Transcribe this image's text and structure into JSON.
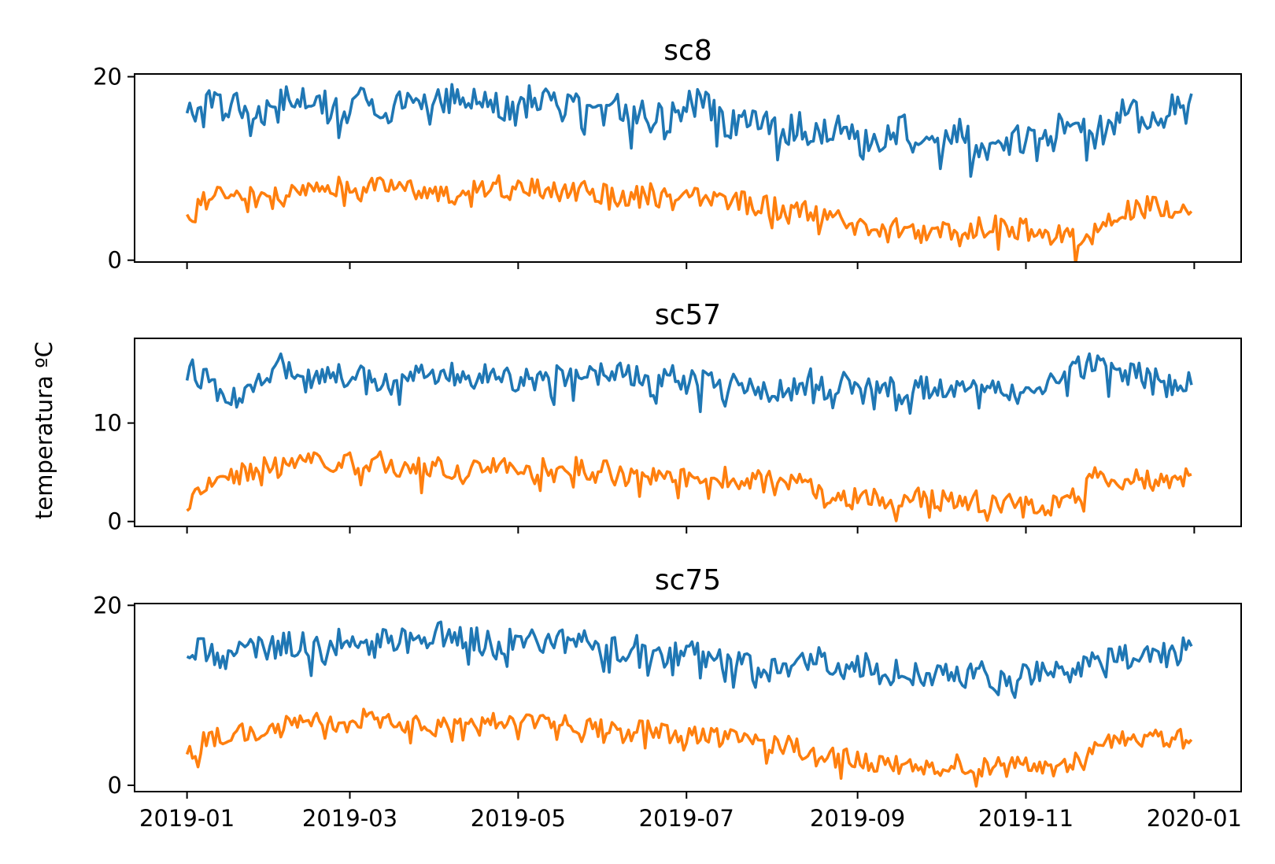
{
  "figure": {
    "ylabel": "temperatura ºC"
  },
  "chart_data": [
    {
      "type": "line",
      "title": "sc8",
      "xlabel": "",
      "ylabel": "",
      "x_range": [
        "2019-01-01",
        "2019-12-31"
      ],
      "xlim": [
        "2018-12-13",
        "2020-01-18"
      ],
      "ylim": [
        -0.2,
        20.3
      ],
      "yticks": [
        0,
        20
      ],
      "ytick_labels": [
        "0",
        "20"
      ],
      "xticks": [
        "2019-01-01",
        "2019-03-01",
        "2019-05-01",
        "2019-07-01",
        "2019-09-01",
        "2019-11-01",
        "2020-01-01"
      ],
      "xtick_labels": [
        "2019-01",
        "2019-03",
        "2019-05",
        "2019-07",
        "2019-09",
        "2019-11",
        "2020-01"
      ],
      "show_xtick_labels": false,
      "grid": false,
      "series": [
        {
          "color": "#1f77b4",
          "sample_every_days": 7,
          "values": [
            15.5,
            17.0,
            16.5,
            17.2,
            15.8,
            17.5,
            18.0,
            17.0,
            16.5,
            17.8,
            15.5,
            16.8,
            17.5,
            17.2,
            17.8,
            18.2,
            17.0,
            16.5,
            17.8,
            17.5,
            17.0,
            16.8,
            17.5,
            16.0,
            15.8,
            15.5,
            17.2,
            16.8,
            14.5,
            15.8,
            15.0,
            14.2,
            14.8,
            13.8,
            15.5,
            12.5,
            13.5,
            14.5,
            13.2,
            12.8,
            13.8,
            12.0,
            12.5,
            13.5,
            12.8,
            14.5,
            14.0,
            14.8,
            15.5,
            16.8,
            15.2,
            16.5,
            17.0,
            15.8,
            16.5,
            17.2,
            16.0,
            16.2,
            17.0,
            16.5,
            16.0,
            16.8,
            16.5
          ],
          "noise": 1.6
        },
        {
          "color": "#ff7f0e",
          "sample_every_days": 7,
          "values": [
            4.5,
            6.5,
            7.5,
            7.0,
            6.5,
            7.0,
            8.0,
            7.8,
            8.0,
            7.5,
            8.2,
            7.5,
            7.8,
            7.0,
            7.2,
            8.0,
            8.2,
            7.5,
            7.8,
            7.5,
            7.8,
            7.5,
            7.2,
            6.8,
            7.2,
            6.5,
            6.8,
            6.5,
            6.5,
            6.2,
            6.0,
            5.8,
            5.5,
            5.0,
            4.5,
            3.5,
            3.2,
            3.5,
            3.0,
            3.2,
            2.5,
            3.5,
            3.8,
            3.5,
            3.0,
            2.8,
            2.5,
            3.0,
            5.0,
            5.5,
            6.0,
            5.8,
            5.5,
            5.5,
            6.0,
            6.5,
            6.8,
            7.2,
            8.0,
            8.2,
            7.5,
            7.8,
            8.0
          ],
          "noise": 1.2
        }
      ]
    },
    {
      "type": "line",
      "title": "sc57",
      "xlabel": "",
      "ylabel": "",
      "x_range": [
        "2019-01-01",
        "2019-12-31"
      ],
      "xlim": [
        "2018-12-13",
        "2020-01-18"
      ],
      "ylim": [
        -0.5,
        18.6
      ],
      "yticks": [
        0,
        10
      ],
      "ytick_labels": [
        "0",
        "10"
      ],
      "xticks": [
        "2019-01-01",
        "2019-03-01",
        "2019-05-01",
        "2019-07-01",
        "2019-09-01",
        "2019-11-01",
        "2020-01-01"
      ],
      "xtick_labels": [
        "2019-01",
        "2019-03",
        "2019-05",
        "2019-07",
        "2019-09",
        "2019-11",
        "2020-01"
      ],
      "show_xtick_labels": false,
      "grid": false,
      "series": [
        {
          "color": "#1f77b4",
          "sample_every_days": 7,
          "values": [
            15.5,
            14.5,
            12.0,
            13.5,
            14.5,
            16.0,
            15.0,
            14.5,
            14.8,
            15.0,
            13.5,
            14.5,
            15.5,
            14.8,
            15.2,
            14.5,
            15.0,
            14.2,
            15.0,
            14.8,
            14.5,
            15.2,
            14.8,
            15.0,
            14.0,
            14.8,
            14.5,
            14.0,
            13.5,
            14.2,
            13.5,
            13.0,
            14.8,
            13.5,
            14.5,
            13.2,
            13.8,
            13.0,
            13.5,
            14.0,
            13.2,
            13.5,
            14.2,
            13.0,
            14.0,
            14.5,
            15.5,
            16.0,
            15.5,
            15.0,
            14.5,
            13.5,
            14.2,
            14.5,
            14.0,
            14.5,
            14.2,
            14.0,
            14.5,
            14.0,
            13.8,
            14.5,
            14.8
          ],
          "noise": 1.3
        },
        {
          "color": "#ff7f0e",
          "sample_every_days": 7,
          "values": [
            2.0,
            4.0,
            4.5,
            5.0,
            5.5,
            5.5,
            6.0,
            6.2,
            6.0,
            5.8,
            6.0,
            5.5,
            5.8,
            5.5,
            5.2,
            5.8,
            6.0,
            5.5,
            5.2,
            5.5,
            5.5,
            5.0,
            5.2,
            5.0,
            4.8,
            4.8,
            5.0,
            4.5,
            4.5,
            4.2,
            4.0,
            4.5,
            3.5,
            2.5,
            2.0,
            2.5,
            2.0,
            1.5,
            2.5,
            2.0,
            2.5,
            2.0,
            1.5,
            2.0,
            1.5,
            1.8,
            2.5,
            4.5,
            4.0,
            4.5,
            4.0,
            3.8,
            4.5,
            4.2,
            5.0,
            5.5,
            5.2,
            5.8,
            6.0,
            6.2,
            6.0,
            6.5,
            6.2
          ],
          "noise": 1.1
        }
      ]
    },
    {
      "type": "line",
      "title": "sc75",
      "xlabel": "",
      "ylabel": "",
      "x_range": [
        "2019-01-01",
        "2019-12-31"
      ],
      "xlim": [
        "2018-12-13",
        "2020-01-18"
      ],
      "ylim": [
        -0.7,
        20.2
      ],
      "yticks": [
        0,
        20
      ],
      "ytick_labels": [
        "0",
        "20"
      ],
      "xticks": [
        "2019-01-01",
        "2019-03-01",
        "2019-05-01",
        "2019-07-01",
        "2019-09-01",
        "2019-11-01",
        "2020-01-01"
      ],
      "xtick_labels": [
        "2019-01",
        "2019-03",
        "2019-05",
        "2019-07",
        "2019-09",
        "2019-11",
        "2020-01"
      ],
      "show_xtick_labels": true,
      "grid": false,
      "series": [
        {
          "color": "#1f77b4",
          "sample_every_days": 7,
          "values": [
            14.5,
            15.0,
            14.0,
            15.5,
            15.0,
            16.0,
            15.5,
            15.0,
            16.0,
            15.0,
            15.8,
            16.5,
            15.5,
            16.8,
            16.0,
            16.5,
            15.5,
            16.0,
            16.5,
            15.8,
            16.0,
            15.5,
            15.0,
            15.5,
            14.8,
            14.5,
            15.0,
            14.0,
            14.5,
            13.5,
            13.0,
            12.5,
            13.5,
            14.0,
            13.0,
            13.5,
            12.5,
            12.8,
            12.0,
            12.5,
            11.8,
            12.5,
            11.5,
            12.0,
            12.5,
            12.2,
            13.0,
            13.5,
            14.0,
            14.5,
            14.0,
            14.8,
            15.0,
            14.5,
            15.0,
            15.5,
            15.0,
            15.8,
            15.2,
            15.0,
            14.5,
            15.5,
            16.5
          ],
          "noise": 1.5
        },
        {
          "color": "#ff7f0e",
          "sample_every_days": 7,
          "values": [
            3.5,
            5.0,
            5.5,
            6.0,
            6.2,
            6.5,
            7.0,
            7.2,
            7.0,
            7.5,
            7.0,
            6.8,
            7.0,
            6.5,
            6.8,
            7.0,
            7.2,
            6.8,
            7.0,
            6.5,
            6.8,
            6.5,
            6.2,
            6.0,
            6.2,
            5.8,
            5.5,
            5.5,
            5.2,
            5.0,
            4.8,
            4.5,
            3.8,
            3.2,
            3.0,
            2.8,
            2.5,
            2.2,
            1.5,
            2.0,
            2.5,
            2.0,
            2.2,
            2.5,
            2.2,
            2.0,
            2.5,
            4.5,
            4.8,
            5.0,
            5.5,
            5.2,
            5.5,
            5.8,
            6.0,
            6.5,
            6.8,
            7.2,
            6.5,
            6.8,
            7.0,
            7.2,
            7.5
          ],
          "noise": 1.1
        }
      ]
    }
  ]
}
